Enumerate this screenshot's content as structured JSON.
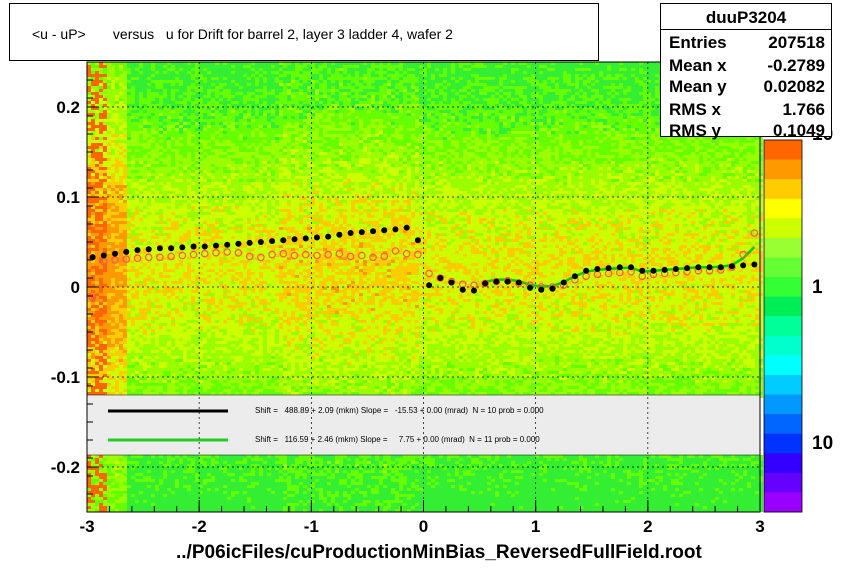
{
  "title": "<u - uP>       versus   u for Drift for barrel 2, layer 3 ladder 4, wafer 2",
  "stats": {
    "name": "duuP3204",
    "rows": [
      {
        "label": "Entries",
        "value": "207518"
      },
      {
        "label": "Mean x",
        "value": "-0.2789"
      },
      {
        "label": "Mean y",
        "value": "0.02082"
      },
      {
        "label": "RMS x",
        "value": "1.766"
      },
      {
        "label": "RMS y",
        "value": "0.1049"
      }
    ]
  },
  "legend": [
    {
      "text": "Shift =   488.89 + 2.09 (mkm) Slope =   -15.53 + 0.00 (mrad)  N = 10 prob = 0.000",
      "color": "#000000"
    },
    {
      "text": "Shift =   116.59 + 2.46 (mkm) Slope =     7.75 + 0.00 (mrad)  N = 11 prob = 0.000",
      "color": "#00cc00"
    }
  ],
  "x_axis_title": "../P06icFiles/cuProductionMinBias_ReversedFullField.root",
  "chart_data": {
    "type": "heatmap",
    "x_range": [
      -3,
      3
    ],
    "y_range": [
      -0.25,
      0.25
    ],
    "x_ticks": [
      "-3",
      "-2",
      "-1",
      "0",
      "1",
      "2",
      "3"
    ],
    "y_ticks": [
      "-0.2",
      "-0.1",
      "0",
      "0.1",
      "0.2"
    ],
    "z_ticks": [
      "10",
      "1",
      "10"
    ],
    "grid": true,
    "series": [
      {
        "name": "profile_black",
        "color": "#000000",
        "x": [
          -2.95,
          -2.85,
          -2.75,
          -2.65,
          -2.55,
          -2.45,
          -2.35,
          -2.25,
          -2.15,
          -2.05,
          -1.95,
          -1.85,
          -1.75,
          -1.65,
          -1.55,
          -1.45,
          -1.35,
          -1.25,
          -1.15,
          -1.05,
          -0.95,
          -0.85,
          -0.75,
          -0.65,
          -0.55,
          -0.45,
          -0.35,
          -0.25,
          -0.15,
          -0.05,
          0.05,
          0.15,
          0.25,
          0.35,
          0.45,
          0.55,
          0.65,
          0.75,
          0.85,
          0.95,
          1.05,
          1.15,
          1.25,
          1.35,
          1.45,
          1.55,
          1.65,
          1.75,
          1.85,
          1.95,
          2.05,
          2.15,
          2.25,
          2.35,
          2.45,
          2.55,
          2.65,
          2.75,
          2.85,
          2.95
        ],
        "y": [
          0.033,
          0.035,
          0.037,
          0.039,
          0.041,
          0.042,
          0.043,
          0.043,
          0.044,
          0.045,
          0.045,
          0.046,
          0.047,
          0.048,
          0.049,
          0.05,
          0.051,
          0.052,
          0.053,
          0.054,
          0.055,
          0.056,
          0.058,
          0.06,
          0.061,
          0.062,
          0.063,
          0.064,
          0.066,
          0.052,
          0.002,
          0.01,
          0.005,
          -0.003,
          -0.004,
          0.004,
          0.006,
          0.006,
          0.005,
          -0.001,
          -0.003,
          -0.002,
          0.005,
          0.012,
          0.018,
          0.02,
          0.021,
          0.022,
          0.022,
          0.018,
          0.018,
          0.019,
          0.02,
          0.021,
          0.022,
          0.022,
          0.022,
          0.023,
          0.024,
          0.025
        ]
      },
      {
        "name": "profile_red",
        "color": "#ff5555",
        "x": [
          -2.95,
          -2.85,
          -2.75,
          -2.65,
          -2.55,
          -2.45,
          -2.35,
          -2.25,
          -2.15,
          -2.05,
          -1.95,
          -1.85,
          -1.75,
          -1.65,
          -1.55,
          -1.45,
          -1.35,
          -1.25,
          -1.15,
          -1.05,
          -0.95,
          -0.85,
          -0.75,
          -0.65,
          -0.55,
          -0.45,
          -0.35,
          -0.25,
          -0.15,
          -0.05,
          0.05,
          0.15,
          0.25,
          0.35,
          0.45,
          0.55,
          0.65,
          0.75,
          0.85,
          0.95,
          1.05,
          1.15,
          1.25,
          1.35,
          1.45,
          1.55,
          1.65,
          1.75,
          1.85,
          1.95,
          2.05,
          2.15,
          2.25,
          2.35,
          2.45,
          2.55,
          2.65,
          2.75,
          2.85,
          2.95
        ],
        "y": [
          -0.012,
          0.028,
          0.03,
          0.031,
          0.032,
          0.033,
          0.033,
          0.034,
          0.035,
          0.036,
          0.037,
          0.038,
          0.039,
          0.038,
          0.034,
          0.033,
          0.036,
          0.037,
          0.035,
          0.036,
          0.035,
          0.036,
          0.037,
          0.034,
          0.035,
          0.033,
          0.034,
          0.04,
          0.037,
          0.036,
          0.015,
          0.01,
          0.006,
          0.003,
          0.002,
          0.004,
          0.006,
          0.007,
          0.004,
          0.002,
          0.0,
          0.0,
          0.002,
          0.008,
          0.012,
          0.014,
          0.015,
          0.016,
          0.017,
          0.012,
          0.014,
          0.015,
          0.016,
          0.017,
          0.018,
          0.018,
          0.019,
          0.022,
          0.036,
          0.06
        ]
      }
    ],
    "fits": [
      {
        "name": "fit_black",
        "color": "#000000",
        "shift_mkm": 488.89,
        "slope_mrad": -15.53
      },
      {
        "name": "fit_green",
        "color": "#00cc00",
        "shift_mkm": 116.59,
        "slope_mrad": 7.75
      }
    ]
  }
}
